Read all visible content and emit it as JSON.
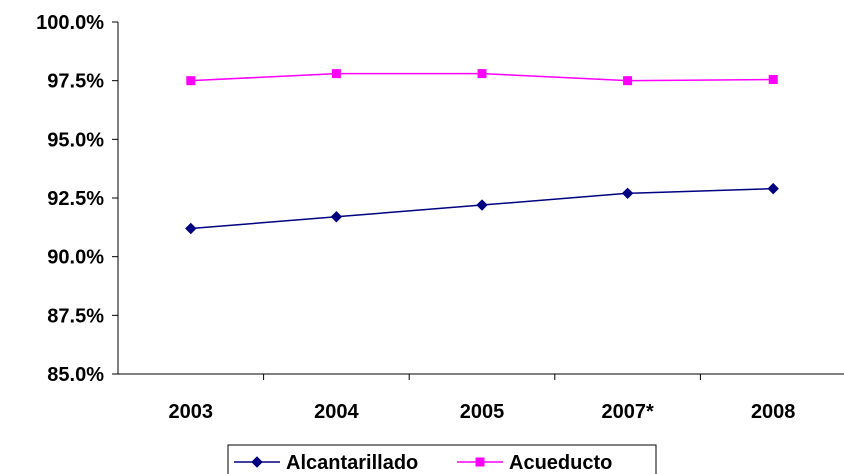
{
  "chart_data": {
    "type": "line",
    "title": "",
    "xlabel": "",
    "ylabel": "",
    "categories": [
      "2003",
      "2004",
      "2005",
      "2007*",
      "2008"
    ],
    "ylim": [
      85.0,
      100.0
    ],
    "yticks": [
      85.0,
      87.5,
      90.0,
      92.5,
      95.0,
      97.5,
      100.0
    ],
    "ytick_labels": [
      "85.0%",
      "87.5%",
      "90.0%",
      "92.5%",
      "95.0%",
      "97.5%",
      "100.0%"
    ],
    "grid": false,
    "legend_position": "bottom",
    "series": [
      {
        "name": "Alcantarillado",
        "values": [
          91.2,
          91.7,
          92.2,
          92.7,
          92.9
        ],
        "color": "#000080",
        "marker": "diamond"
      },
      {
        "name": "Acueducto",
        "values": [
          97.5,
          97.8,
          97.8,
          97.5,
          97.55
        ],
        "color": "#FF00FF",
        "marker": "square"
      }
    ]
  }
}
